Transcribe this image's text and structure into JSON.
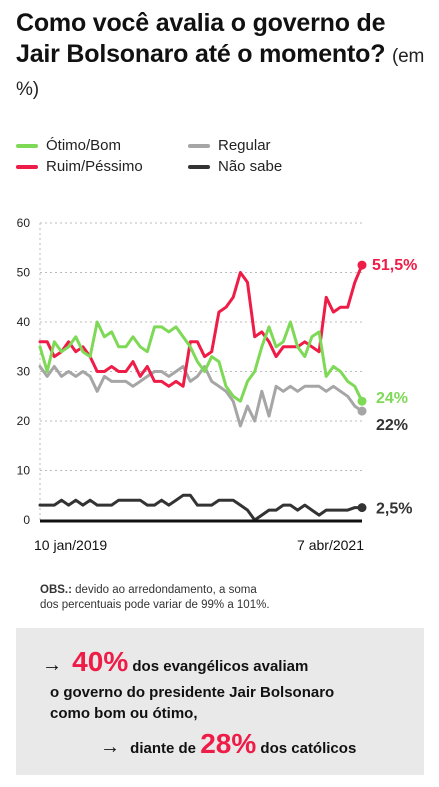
{
  "title": {
    "main": "Como você avalia o governo de Jair Bolsonaro até o momento?",
    "unit": "(em %)"
  },
  "colors": {
    "otimo_bom": "#7ed957",
    "ruim_pessimo": "#ee1c47",
    "regular": "#a6a6a6",
    "nao_sabe": "#333333"
  },
  "chart_data": {
    "type": "line",
    "title": "Como você avalia o governo de Jair Bolsonaro até o momento?",
    "ylabel": "",
    "xlabel": "",
    "ylim": [
      0,
      60
    ],
    "yticks": [
      "0",
      "10",
      "20",
      "30",
      "40",
      "50",
      "60"
    ],
    "x_start_label": "10 jan/2019",
    "x_end_label": "7 abr/2021",
    "grid": "horizontal-dashed",
    "legend_position": "top",
    "n_points": 46,
    "series": [
      {
        "name": "Ótimo/Bom",
        "color": "#7ed957",
        "end_label": "24%",
        "values": [
          35,
          30,
          36,
          34,
          35,
          37,
          34,
          33,
          40,
          37,
          38,
          35,
          35,
          37,
          35,
          34,
          39,
          39,
          38,
          39,
          37,
          35,
          32,
          30,
          33,
          32,
          27,
          25,
          24,
          28,
          30,
          35,
          39,
          35,
          36,
          40,
          35,
          33,
          37,
          38,
          29,
          31,
          30,
          28,
          27,
          24
        ]
      },
      {
        "name": "Ruim/Péssimo",
        "color": "#ee1c47",
        "end_label": "51,5%",
        "values": [
          36,
          36,
          33,
          34,
          36,
          34,
          35,
          33,
          30,
          30,
          31,
          30,
          30,
          32,
          29,
          31,
          28,
          28,
          27,
          28,
          27,
          36,
          36,
          33,
          34,
          42,
          43,
          45,
          50,
          48,
          37,
          38,
          36,
          33,
          35,
          35,
          35,
          36,
          35,
          34,
          45,
          42,
          43,
          43,
          48,
          51.5
        ]
      },
      {
        "name": "Regular",
        "color": "#a6a6a6",
        "end_label": "22%",
        "values": [
          31,
          29,
          31,
          29,
          30,
          29,
          30,
          29,
          26,
          29,
          28,
          28,
          28,
          27,
          28,
          29,
          30,
          30,
          29,
          30,
          31,
          28,
          29,
          31,
          28,
          27,
          26,
          24,
          19,
          23,
          20,
          26,
          21,
          27,
          26,
          27,
          26,
          27,
          27,
          27,
          26,
          27,
          26,
          25,
          23,
          22
        ]
      },
      {
        "name": "Não sabe",
        "color": "#333333",
        "end_label": "2,5%",
        "values": [
          3,
          3,
          3,
          4,
          3,
          4,
          3,
          4,
          3,
          3,
          3,
          4,
          4,
          4,
          4,
          3,
          3,
          4,
          3,
          4,
          5,
          5,
          3,
          3,
          3,
          4,
          4,
          4,
          3,
          2,
          0,
          1,
          2,
          2,
          3,
          3,
          2,
          3,
          2,
          1,
          2,
          2,
          2,
          2,
          2.5,
          2.5
        ]
      }
    ]
  },
  "legend": [
    {
      "label": "Ótimo/Bom"
    },
    {
      "label": "Regular"
    },
    {
      "label": "Ruim/Péssimo"
    },
    {
      "label": "Não sabe"
    }
  ],
  "obs": {
    "bold": "OBS.:",
    "line1": "devido ao arredondamento, a soma",
    "line2": "dos percentuais pode variar de 99% a 101%."
  },
  "callout": {
    "arrow": "→",
    "big1": "40%",
    "text1": "dos evangélicos avaliam",
    "text2": "o governo do presidente Jair Bolsonaro",
    "text3": "como bom ou ótimo,",
    "text4": "diante de",
    "big2": "28%",
    "text5": "dos católicos"
  }
}
